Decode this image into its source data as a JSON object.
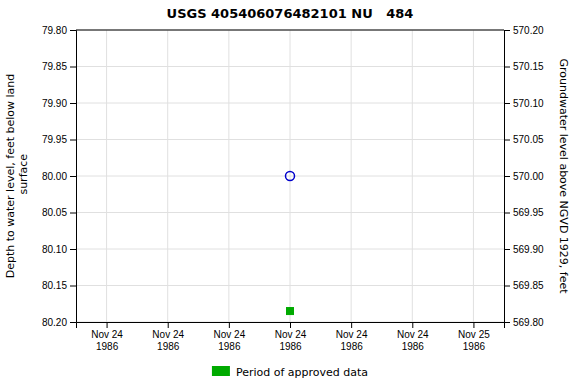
{
  "chart_data": {
    "type": "scatter",
    "title": "USGS 405406076482101 NU   484",
    "y_label": "Depth to water level, feet below land\n surface",
    "y2_label": "Groundwater level above NGVD 1929, feet",
    "categories": [
      "Nov 24\n1986",
      "Nov 24\n1986",
      "Nov 24\n1986",
      "Nov 24\n1986",
      "Nov 24\n1986",
      "Nov 24\n1986",
      "Nov 25\n1986"
    ],
    "ylim": [
      80.2,
      79.8
    ],
    "yticks": [
      {
        "value": 79.8,
        "label": "79.80"
      },
      79.85,
      {
        "value": 79.9,
        "label": "79.90"
      },
      79.95,
      {
        "value": 80.0,
        "label": "80.00"
      },
      80.05,
      {
        "value": 80.1,
        "label": "80.10"
      },
      80.15,
      {
        "value": 80.2,
        "label": "80.20"
      }
    ],
    "y2lim": [
      569.8,
      570.2
    ],
    "y2ticks": [
      {
        "value": 570.2,
        "label": "570.20"
      },
      570.15,
      {
        "value": 570.1,
        "label": "570.10"
      },
      570.05,
      {
        "value": 570.0,
        "label": "570.00"
      },
      569.95,
      {
        "value": 569.9,
        "label": "569.90"
      },
      569.85,
      {
        "value": 569.8,
        "label": "569.80"
      }
    ],
    "grid": true,
    "legend": "bottom",
    "series": [
      {
        "color": "#0000cc",
        "marker": "circle-open",
        "values": [
          null,
          null,
          null,
          80.0,
          null,
          null,
          null
        ]
      },
      {
        "name": "Period of approved data",
        "color": "#00aa00",
        "marker": "square",
        "values": [
          null,
          null,
          null,
          80.185,
          null,
          null,
          null
        ]
      }
    ]
  }
}
